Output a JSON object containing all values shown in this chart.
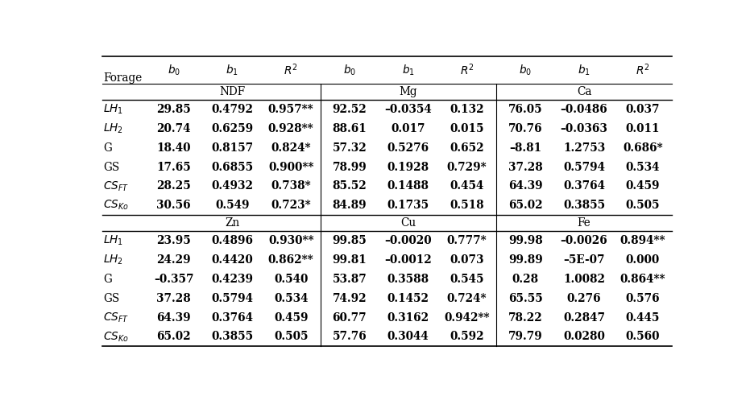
{
  "forage_labels_sub": [
    [
      "LH",
      "1"
    ],
    [
      "LH",
      "2"
    ],
    [
      "G",
      ""
    ],
    [
      "GS",
      ""
    ],
    [
      "CS",
      "FT"
    ],
    [
      "CS",
      "Ko"
    ]
  ],
  "sections_top": [
    "NDF",
    "Mg",
    "Ca"
  ],
  "sections_bot": [
    "Zn",
    "Cu",
    "Fe"
  ],
  "data_top": [
    {
      "NDF": [
        "29.85",
        "0.4792",
        "0.957**"
      ],
      "Mg": [
        "92.52",
        "–0.0354",
        "0.132"
      ],
      "Ca": [
        "76.05",
        "–0.0486",
        "0.037"
      ]
    },
    {
      "NDF": [
        "20.74",
        "0.6259",
        "0.928**"
      ],
      "Mg": [
        "88.61",
        "0.017",
        "0.015"
      ],
      "Ca": [
        "70.76",
        "–0.0363",
        "0.011"
      ]
    },
    {
      "NDF": [
        "18.40",
        "0.8157",
        "0.824*"
      ],
      "Mg": [
        "57.32",
        "0.5276",
        "0.652"
      ],
      "Ca": [
        "–8.81",
        "1.2753",
        "0.686*"
      ]
    },
    {
      "NDF": [
        "17.65",
        "0.6855",
        "0.900**"
      ],
      "Mg": [
        "78.99",
        "0.1928",
        "0.729*"
      ],
      "Ca": [
        "37.28",
        "0.5794",
        "0.534"
      ]
    },
    {
      "NDF": [
        "28.25",
        "0.4932",
        "0.738*"
      ],
      "Mg": [
        "85.52",
        "0.1488",
        "0.454"
      ],
      "Ca": [
        "64.39",
        "0.3764",
        "0.459"
      ]
    },
    {
      "NDF": [
        "30.56",
        "0.549",
        "0.723*"
      ],
      "Mg": [
        "84.89",
        "0.1735",
        "0.518"
      ],
      "Ca": [
        "65.02",
        "0.3855",
        "0.505"
      ]
    }
  ],
  "data_bottom": [
    {
      "Zn": [
        "23.95",
        "0.4896",
        "0.930**"
      ],
      "Cu": [
        "99.85",
        "–0.0020",
        "0.777*"
      ],
      "Fe": [
        "99.98",
        "–0.0026",
        "0.894**"
      ]
    },
    {
      "Zn": [
        "24.29",
        "0.4420",
        "0.862**"
      ],
      "Cu": [
        "99.81",
        "–0.0012",
        "0.073"
      ],
      "Fe": [
        "99.89",
        "–5E-07",
        "0.000"
      ]
    },
    {
      "Zn": [
        "–0.357",
        "0.4239",
        "0.540"
      ],
      "Cu": [
        "53.87",
        "0.3588",
        "0.545"
      ],
      "Fe": [
        "0.28",
        "1.0082",
        "0.864**"
      ]
    },
    {
      "Zn": [
        "37.28",
        "0.5794",
        "0.534"
      ],
      "Cu": [
        "74.92",
        "0.1452",
        "0.724*"
      ],
      "Fe": [
        "65.55",
        "0.276",
        "0.576"
      ]
    },
    {
      "Zn": [
        "64.39",
        "0.3764",
        "0.459"
      ],
      "Cu": [
        "60.77",
        "0.3162",
        "0.942**"
      ],
      "Fe": [
        "78.22",
        "0.2847",
        "0.445"
      ]
    },
    {
      "Zn": [
        "65.02",
        "0.3855",
        "0.505"
      ],
      "Cu": [
        "57.76",
        "0.3044",
        "0.592"
      ],
      "Fe": [
        "79.79",
        "0.0280",
        "0.560"
      ]
    }
  ],
  "bg_color": "#ffffff",
  "text_color": "#000000",
  "line_color": "#000000",
  "font_size": 9.8,
  "bold_data": true
}
